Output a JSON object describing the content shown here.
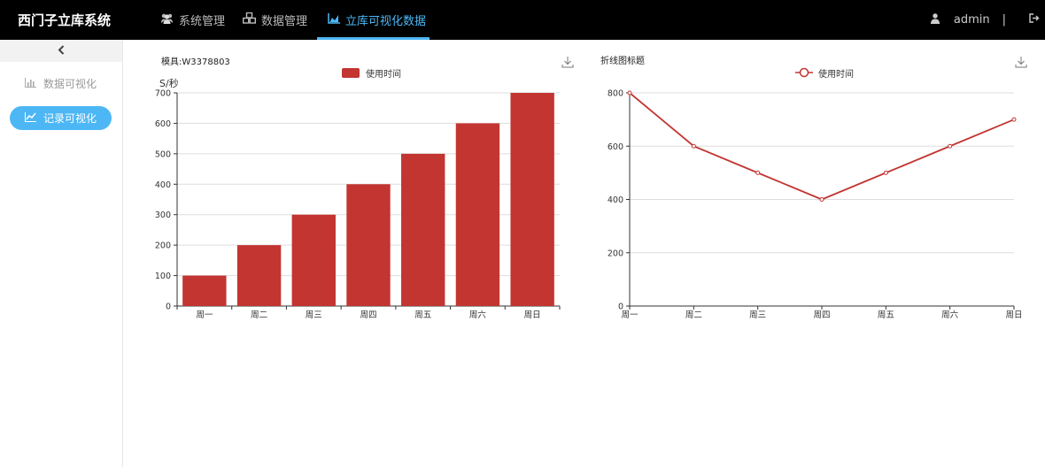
{
  "header": {
    "brand": "西门子立库系统",
    "nav": [
      {
        "label": "系统管理",
        "icon": "users-icon"
      },
      {
        "label": "数据管理",
        "icon": "cubes-icon"
      },
      {
        "label": "立库可视化数据",
        "icon": "area-chart-icon",
        "active": true
      }
    ],
    "user": "admin",
    "separator": "|"
  },
  "sidebar": {
    "collapse_icon": "chevron-left-icon",
    "items": [
      {
        "label": "数据可视化",
        "icon": "bar-chart-icon"
      },
      {
        "label": "记录可视化",
        "icon": "line-chart-icon",
        "active": true
      }
    ]
  },
  "colors": {
    "accent": "#4db7f5",
    "series": "#c23531"
  },
  "chart_data": [
    {
      "type": "bar",
      "title": "模具:W3378803",
      "legend": [
        "使用时间"
      ],
      "legend_position": "top-center",
      "ylabel": "S/秒",
      "categories": [
        "周一",
        "周二",
        "周三",
        "周四",
        "周五",
        "周六",
        "周日"
      ],
      "series": [
        {
          "name": "使用时间",
          "values": [
            100,
            200,
            300,
            400,
            500,
            600,
            700
          ]
        }
      ],
      "ylim": [
        0,
        700
      ],
      "yticks": [
        0,
        100,
        200,
        300,
        400,
        500,
        600,
        700
      ],
      "grid": true
    },
    {
      "type": "line",
      "title": "折线图标题",
      "legend": [
        "使用时间"
      ],
      "legend_position": "top-center",
      "categories": [
        "周一",
        "周二",
        "周三",
        "周四",
        "周五",
        "周六",
        "周日"
      ],
      "series": [
        {
          "name": "使用时间",
          "values": [
            800,
            600,
            500,
            400,
            500,
            600,
            700
          ]
        }
      ],
      "ylim": [
        0,
        800
      ],
      "yticks": [
        0,
        200,
        400,
        600,
        800
      ],
      "grid": true
    }
  ]
}
